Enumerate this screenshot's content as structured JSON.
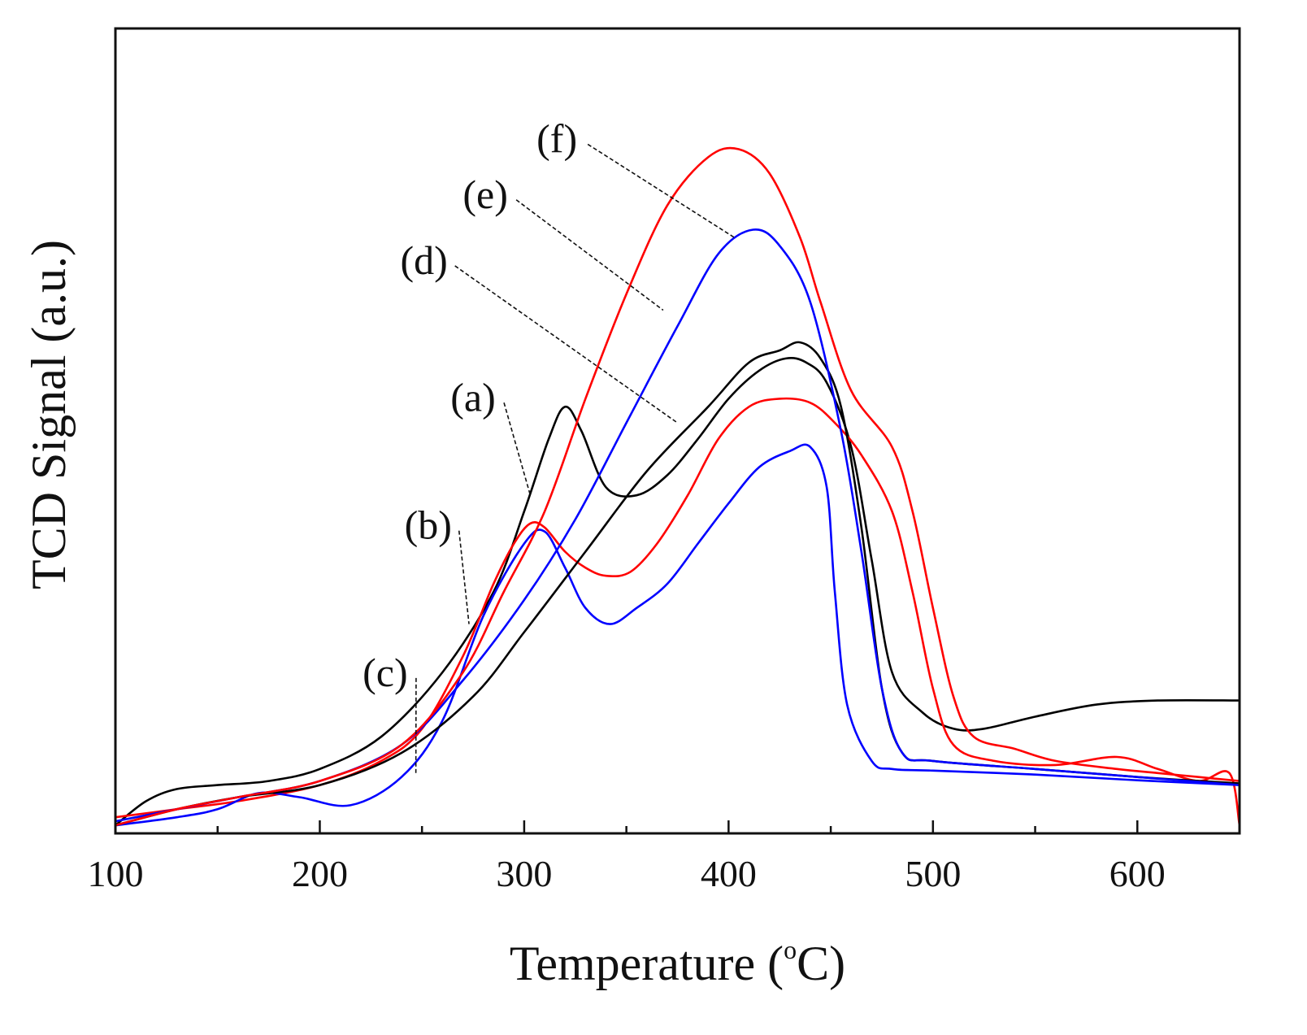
{
  "chart_data": {
    "type": "line",
    "title": "",
    "xlabel": "Temperature (°C)",
    "xlabel_main": "Temperature (",
    "xlabel_super": "o",
    "xlabel_end": "C)",
    "ylabel": "TCD Signal (a.u.)",
    "xlim": [
      100,
      650
    ],
    "ylim": [
      0,
      100
    ],
    "xticks": [
      100,
      200,
      300,
      400,
      500,
      600
    ],
    "xtick_labels": [
      "100",
      "200",
      "300",
      "400",
      "500",
      "600"
    ],
    "yticks_shown": false,
    "grid": false,
    "legend": "none (series labelled by callout annotations)",
    "series": [
      {
        "name": "(a)",
        "color": "#000000",
        "x": [
          100,
          115,
          130,
          150,
          175,
          200,
          230,
          260,
          285,
          300,
          312,
          320,
          328,
          340,
          355,
          370,
          385,
          400,
          415,
          428,
          438,
          448,
          460,
          470,
          480,
          495,
          510,
          525,
          550,
          580,
          610,
          650
        ],
        "y": [
          1,
          4,
          5.5,
          6,
          6.5,
          8,
          12,
          20,
          30,
          40,
          49,
          53,
          50,
          43,
          42,
          44.5,
          49,
          54,
          57.5,
          59,
          58.5,
          56,
          48,
          34,
          20,
          15,
          13,
          13,
          14.5,
          16,
          16.5,
          16.5
        ]
      },
      {
        "name": "(b)",
        "color": "#ff0000",
        "x": [
          100,
          130,
          160,
          200,
          230,
          250,
          270,
          285,
          295,
          303,
          310,
          320,
          330,
          340,
          352,
          365,
          380,
          395,
          410,
          425,
          440,
          452,
          465,
          480,
          490,
          500,
          510,
          530,
          560,
          590,
          610,
          630,
          645,
          650
        ],
        "y": [
          2,
          3,
          4,
          6,
          9,
          13,
          22,
          31,
          36,
          38.5,
          38,
          35,
          33,
          32,
          32.5,
          36,
          42,
          49,
          53,
          54,
          53.5,
          51,
          47,
          40,
          30,
          18,
          11,
          9,
          8.5,
          9.5,
          8,
          6.5,
          7.5,
          1
        ]
      },
      {
        "name": "(c)",
        "color": "#0000ff",
        "x": [
          100,
          130,
          150,
          170,
          190,
          215,
          240,
          260,
          280,
          300,
          310,
          320,
          330,
          342,
          355,
          370,
          385,
          400,
          415,
          430,
          440,
          448,
          452,
          458,
          470,
          480,
          500,
          550,
          600,
          650
        ],
        "y": [
          1,
          2,
          3,
          5,
          4.5,
          3.5,
          7,
          14,
          27,
          36,
          37.5,
          33,
          28,
          26,
          28,
          31,
          36,
          41,
          45.5,
          47.5,
          48,
          43,
          30,
          16,
          9,
          8,
          7.8,
          7.3,
          6.6,
          6
        ]
      },
      {
        "name": "(d)",
        "color": "#000000",
        "x": [
          100,
          130,
          160,
          200,
          240,
          275,
          300,
          330,
          360,
          390,
          410,
          425,
          435,
          445,
          455,
          465,
          475,
          485,
          500,
          550,
          600,
          650
        ],
        "y": [
          1,
          3,
          4.5,
          6,
          10,
          17,
          25,
          35,
          45,
          53,
          58.5,
          60,
          61,
          59,
          53,
          38,
          18,
          10,
          9,
          8,
          7,
          6.2
        ]
      },
      {
        "name": "(e)",
        "color": "#0000ff",
        "x": [
          100,
          130,
          160,
          200,
          240,
          270,
          300,
          325,
          350,
          375,
          395,
          412,
          425,
          440,
          455,
          465,
          475,
          485,
          500,
          550,
          600,
          650
        ],
        "y": [
          1.5,
          3,
          4.5,
          6.5,
          11,
          19,
          29,
          39,
          51,
          63,
          72,
          75,
          73,
          66,
          50,
          35,
          18,
          10,
          9,
          8,
          7,
          6
        ]
      },
      {
        "name": "(f)",
        "color": "#ff0000",
        "x": [
          100,
          130,
          160,
          200,
          240,
          270,
          290,
          310,
          330,
          350,
          370,
          390,
          405,
          420,
          435,
          445,
          460,
          480,
          490,
          500,
          510,
          520,
          540,
          560,
          590,
          610,
          630,
          650
        ],
        "y": [
          1,
          3,
          4.5,
          6.5,
          11,
          20,
          30,
          40,
          54,
          67,
          78,
          84,
          85,
          82,
          74,
          66,
          55,
          48,
          40,
          28,
          17,
          12,
          10.5,
          9,
          8,
          7.5,
          7,
          6.5
        ]
      }
    ],
    "annotations": [
      {
        "label": "(a)",
        "series": "(a)",
        "text_x": 275,
        "text_y": 52.5,
        "point_x": 303,
        "point_y": 42
      },
      {
        "label": "(b)",
        "series": "(b)",
        "text_x": 253,
        "text_y": 36.6,
        "point_x": 273,
        "point_y": 26
      },
      {
        "label": "(c)",
        "series": "(c)",
        "text_x": 232,
        "text_y": 18.3,
        "point_x": 247,
        "point_y": 7.5
      },
      {
        "label": "(d)",
        "series": "(d)",
        "text_x": 251,
        "text_y": 69.5,
        "point_x": 375,
        "point_y": 51
      },
      {
        "label": "(e)",
        "series": "(e)",
        "text_x": 281,
        "text_y": 77.7,
        "point_x": 368,
        "point_y": 65
      },
      {
        "label": "(f)",
        "series": "(f)",
        "text_x": 316,
        "text_y": 84.6,
        "point_x": 403,
        "point_y": 74
      }
    ]
  }
}
